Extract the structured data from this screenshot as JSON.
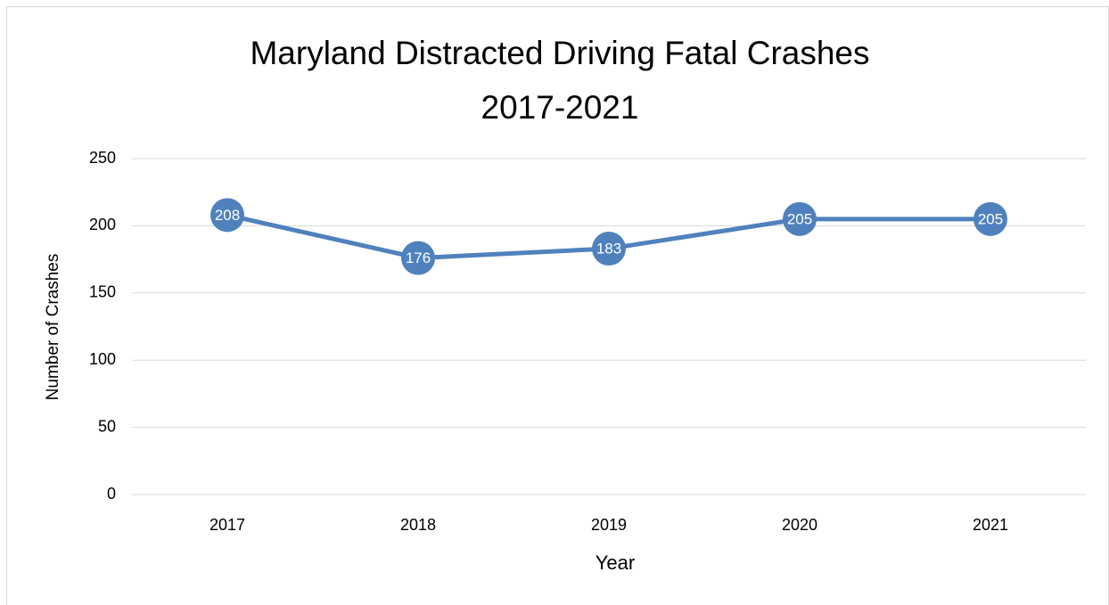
{
  "chart_data": {
    "type": "line",
    "title": [
      "Maryland Distracted Driving Fatal Crashes",
      "2017-2021"
    ],
    "x_label": "Year",
    "y_label": "Number of Crashes",
    "categories": [
      "2017",
      "2018",
      "2019",
      "2020",
      "2021"
    ],
    "values": [
      208,
      176,
      183,
      205,
      205
    ],
    "color": "#4f81bd",
    "ylim": [
      0,
      250
    ],
    "yticks": [
      0,
      50,
      100,
      150,
      200,
      250
    ],
    "grid": true
  }
}
